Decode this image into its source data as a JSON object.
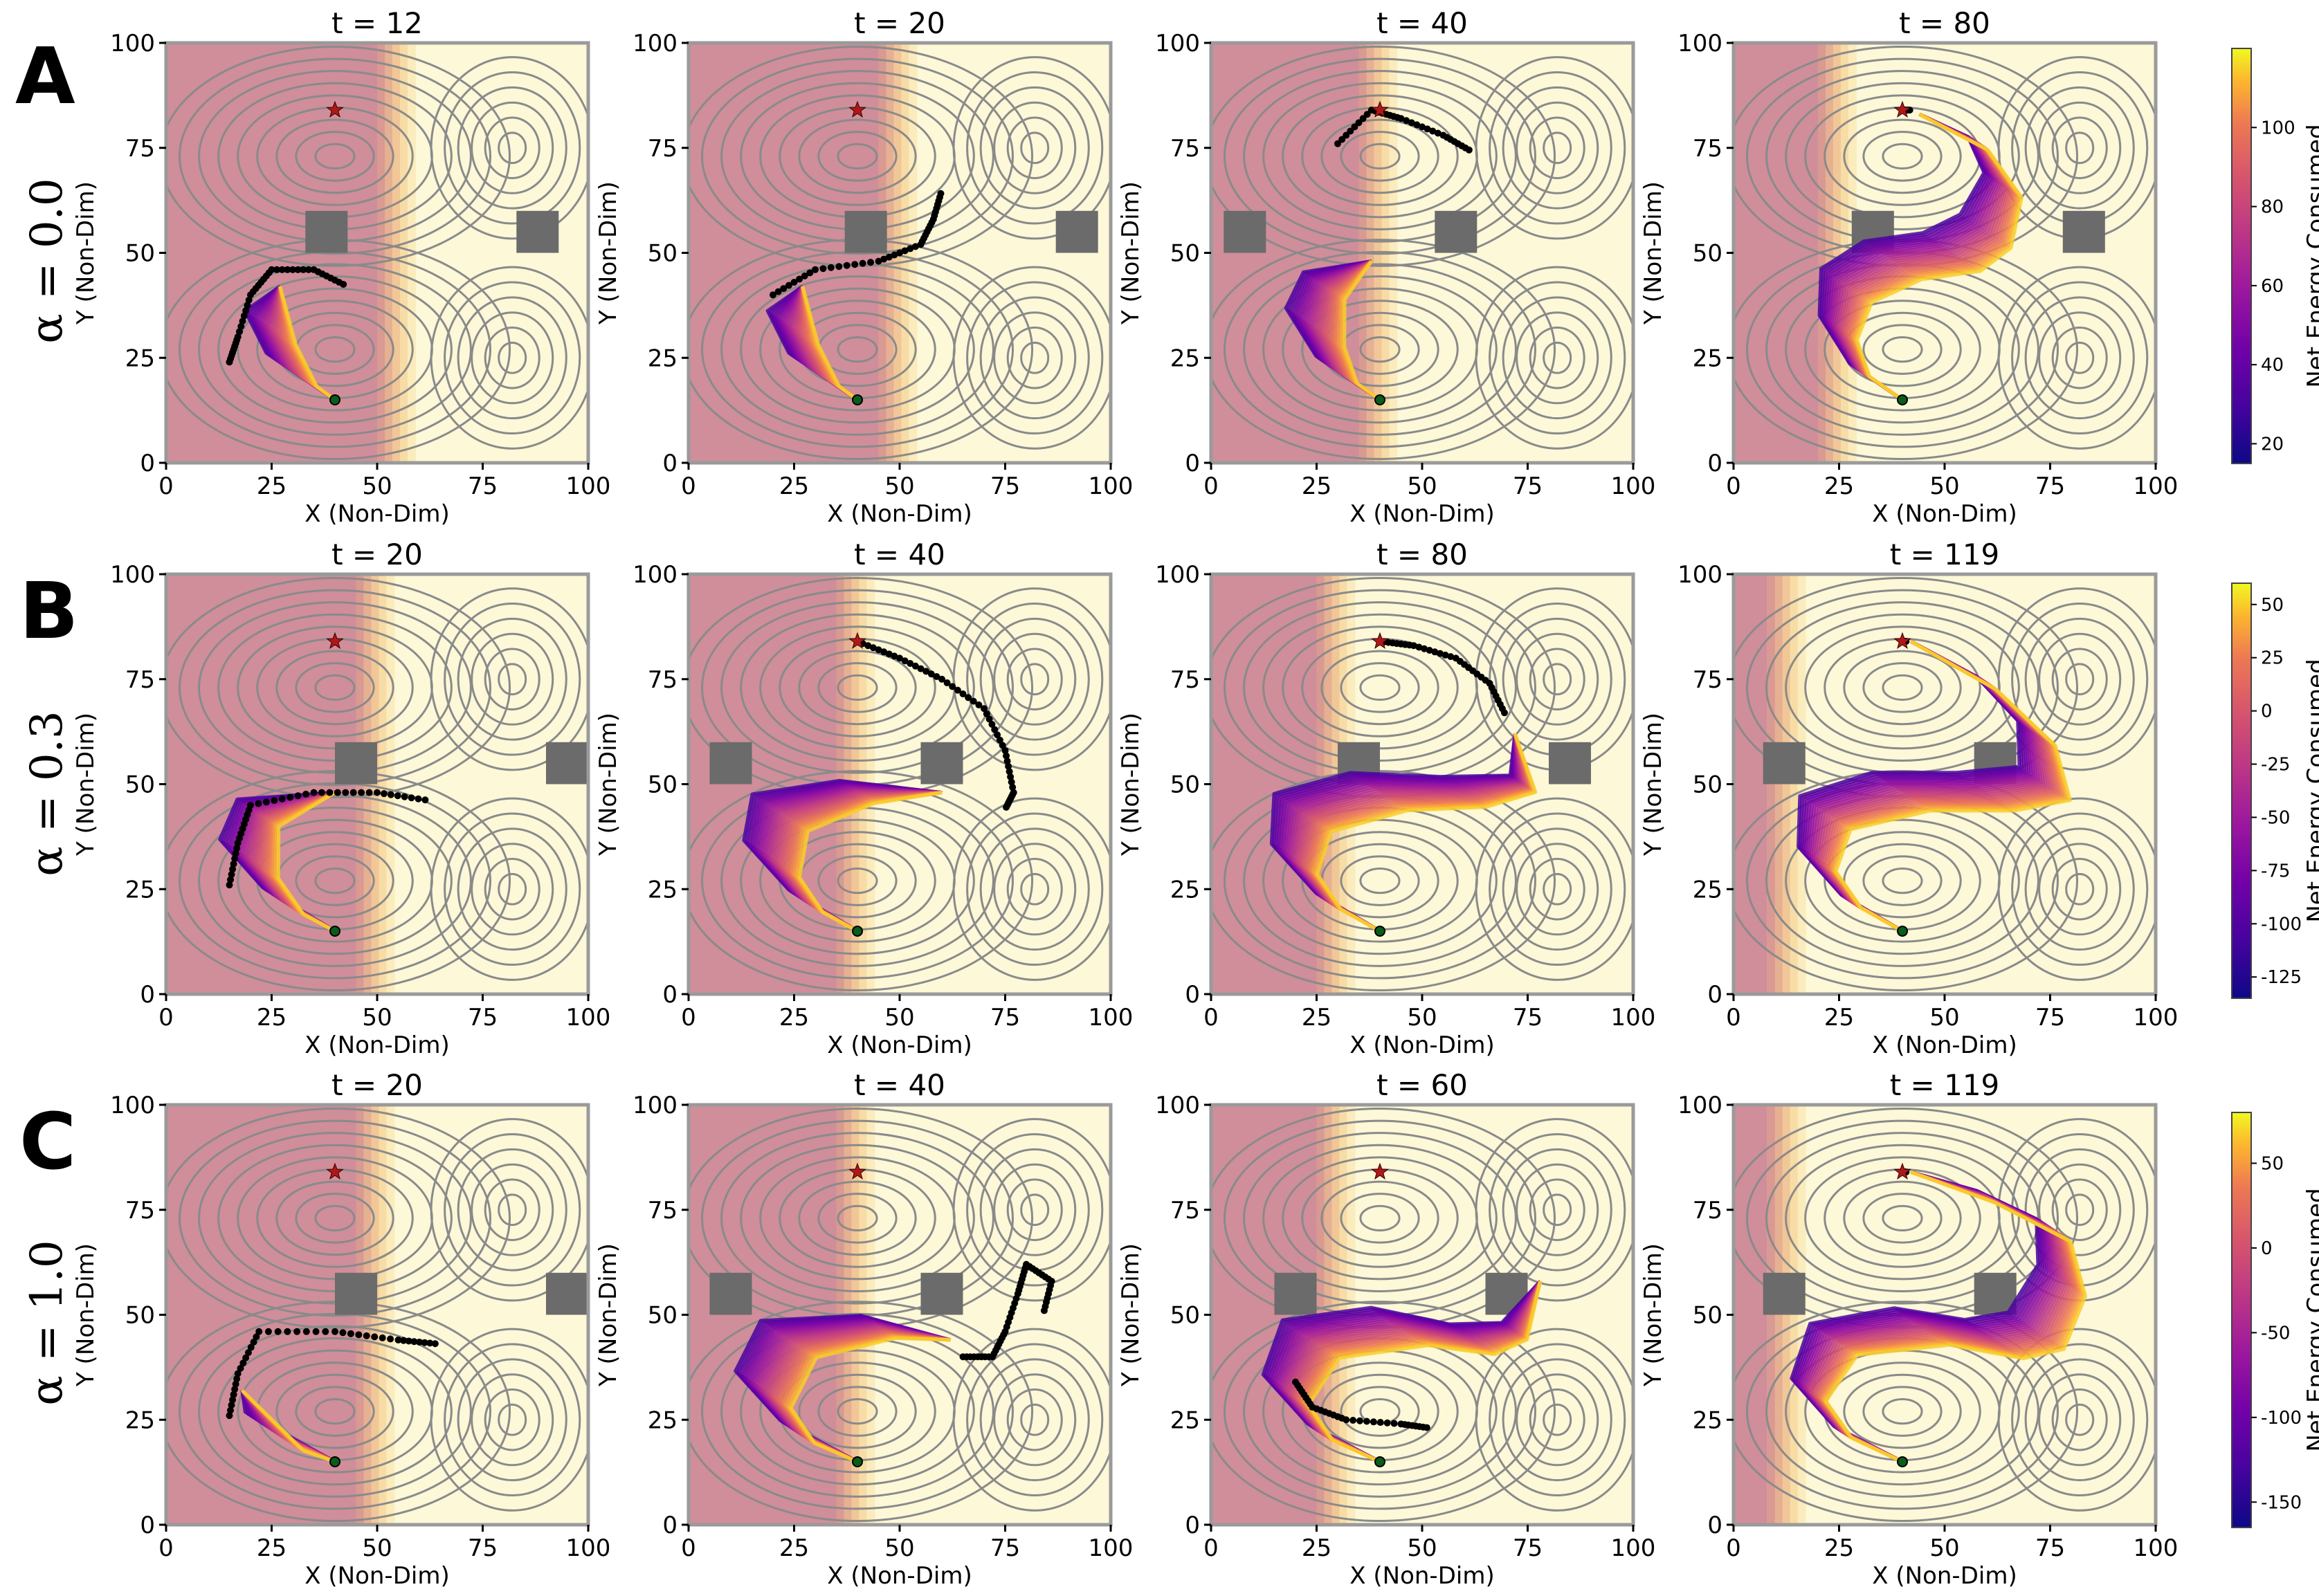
{
  "figure": {
    "axis_xlabel": "X (Non-Dim)",
    "axis_ylabel": "Y (Non-Dim)",
    "colorbar_label": "Net Energy Consumed",
    "tick_values": [
      0,
      25,
      50,
      75,
      100
    ]
  },
  "rows": [
    {
      "letter": "A",
      "alpha_label": "α = 0.0",
      "colorbar_ticks": [
        20,
        40,
        60,
        80,
        100
      ],
      "colorbar_range": [
        15,
        120
      ]
    },
    {
      "letter": "B",
      "alpha_label": "α = 0.3",
      "colorbar_ticks": [
        -125,
        -100,
        -75,
        -50,
        -25,
        0,
        25,
        50
      ],
      "colorbar_range": [
        -135,
        60
      ]
    },
    {
      "letter": "C",
      "alpha_label": "α = 1.0",
      "colorbar_ticks": [
        -150,
        -100,
        -50,
        0,
        50
      ],
      "colorbar_range": [
        -165,
        80
      ]
    }
  ],
  "chart_data": [
    {
      "type": "line",
      "row": "A",
      "title": "t = 12",
      "xlim": [
        0,
        100
      ],
      "ylim": [
        0,
        100
      ],
      "start": [
        40,
        15
      ],
      "goal": [
        40,
        84
      ],
      "obstacles": [
        [
          38,
          55
        ],
        [
          88,
          55
        ]
      ],
      "shade_edge": 50,
      "frontier": [
        [
          15,
          24
        ],
        [
          17,
          30
        ],
        [
          20,
          40
        ],
        [
          25,
          46
        ],
        [
          35,
          46
        ],
        [
          43,
          42
        ]
      ]
    },
    {
      "type": "line",
      "row": "A",
      "title": "t = 20",
      "xlim": [
        0,
        100
      ],
      "ylim": [
        0,
        100
      ],
      "start": [
        40,
        15
      ],
      "goal": [
        40,
        84
      ],
      "obstacles": [
        [
          42,
          55
        ],
        [
          92,
          55
        ]
      ],
      "shade_edge": 45,
      "frontier": [
        [
          20,
          40
        ],
        [
          30,
          46
        ],
        [
          45,
          48
        ],
        [
          55,
          52
        ],
        [
          58,
          58
        ],
        [
          60,
          65
        ]
      ]
    },
    {
      "type": "line",
      "row": "A",
      "title": "t = 40",
      "xlim": [
        0,
        100
      ],
      "ylim": [
        0,
        100
      ],
      "start": [
        40,
        15
      ],
      "goal": [
        40,
        84
      ],
      "obstacles": [
        [
          8,
          55
        ],
        [
          58,
          55
        ]
      ],
      "shade_edge": 35,
      "frontier": [
        [
          30,
          76
        ],
        [
          38,
          84
        ],
        [
          45,
          82
        ],
        [
          55,
          78
        ],
        [
          62,
          74
        ]
      ]
    },
    {
      "type": "line",
      "row": "A",
      "title": "t = 80",
      "xlim": [
        0,
        100
      ],
      "ylim": [
        0,
        100
      ],
      "start": [
        40,
        15
      ],
      "goal": [
        40,
        84
      ],
      "obstacles": [
        [
          33,
          55
        ],
        [
          83,
          55
        ]
      ],
      "shade_edge": 20,
      "frontier": [
        [
          40,
          84
        ],
        [
          42,
          84
        ]
      ]
    },
    {
      "type": "line",
      "row": "B",
      "title": "t = 20",
      "xlim": [
        0,
        100
      ],
      "ylim": [
        0,
        100
      ],
      "start": [
        40,
        15
      ],
      "goal": [
        40,
        84
      ],
      "obstacles": [
        [
          45,
          55
        ],
        [
          95,
          55
        ]
      ],
      "shade_edge": 45,
      "frontier": [
        [
          15,
          26
        ],
        [
          17,
          36
        ],
        [
          20,
          45
        ],
        [
          35,
          48
        ],
        [
          50,
          48
        ],
        [
          63,
          46
        ]
      ]
    },
    {
      "type": "line",
      "row": "B",
      "title": "t = 40",
      "xlim": [
        0,
        100
      ],
      "ylim": [
        0,
        100
      ],
      "start": [
        40,
        15
      ],
      "goal": [
        40,
        84
      ],
      "obstacles": [
        [
          10,
          55
        ],
        [
          60,
          55
        ]
      ],
      "shade_edge": 35,
      "frontier": [
        [
          40,
          84
        ],
        [
          50,
          80
        ],
        [
          60,
          75
        ],
        [
          70,
          68
        ],
        [
          75,
          58
        ],
        [
          77,
          48
        ],
        [
          75,
          44
        ]
      ]
    },
    {
      "type": "line",
      "row": "B",
      "title": "t = 80",
      "xlim": [
        0,
        100
      ],
      "ylim": [
        0,
        100
      ],
      "start": [
        40,
        15
      ],
      "goal": [
        40,
        84
      ],
      "obstacles": [
        [
          35,
          55
        ],
        [
          85,
          55
        ]
      ],
      "shade_edge": 25,
      "frontier": [
        [
          40,
          84
        ],
        [
          48,
          83
        ],
        [
          58,
          80
        ],
        [
          66,
          74
        ],
        [
          70,
          66
        ]
      ]
    },
    {
      "type": "line",
      "row": "B",
      "title": "t = 119",
      "xlim": [
        0,
        100
      ],
      "ylim": [
        0,
        100
      ],
      "start": [
        40,
        15
      ],
      "goal": [
        40,
        84
      ],
      "obstacles": [
        [
          12,
          55
        ],
        [
          62,
          55
        ]
      ],
      "shade_edge": 8,
      "frontier": [
        [
          40,
          84
        ],
        [
          41,
          84
        ]
      ]
    },
    {
      "type": "line",
      "row": "C",
      "title": "t = 20",
      "xlim": [
        0,
        100
      ],
      "ylim": [
        0,
        100
      ],
      "start": [
        40,
        15
      ],
      "goal": [
        40,
        84
      ],
      "obstacles": [
        [
          45,
          55
        ],
        [
          95,
          55
        ]
      ],
      "shade_edge": 45,
      "frontier": [
        [
          15,
          26
        ],
        [
          17,
          36
        ],
        [
          22,
          46
        ],
        [
          40,
          46
        ],
        [
          55,
          44
        ],
        [
          65,
          43
        ]
      ]
    },
    {
      "type": "line",
      "row": "C",
      "title": "t = 40",
      "xlim": [
        0,
        100
      ],
      "ylim": [
        0,
        100
      ],
      "start": [
        40,
        15
      ],
      "goal": [
        40,
        84
      ],
      "obstacles": [
        [
          10,
          55
        ],
        [
          60,
          55
        ]
      ],
      "shade_edge": 35,
      "frontier": [
        [
          65,
          40
        ],
        [
          72,
          40
        ],
        [
          75,
          46
        ],
        [
          78,
          55
        ],
        [
          80,
          62
        ],
        [
          86,
          58
        ],
        [
          84,
          50
        ]
      ]
    },
    {
      "type": "line",
      "row": "C",
      "title": "t = 60",
      "xlim": [
        0,
        100
      ],
      "ylim": [
        0,
        100
      ],
      "start": [
        40,
        15
      ],
      "goal": [
        40,
        84
      ],
      "obstacles": [
        [
          20,
          55
        ],
        [
          70,
          55
        ]
      ],
      "shade_edge": 25,
      "frontier": [
        [
          20,
          34
        ],
        [
          24,
          28
        ],
        [
          32,
          25
        ],
        [
          45,
          24
        ],
        [
          52,
          23
        ]
      ]
    },
    {
      "type": "line",
      "row": "C",
      "title": "t = 119",
      "xlim": [
        0,
        100
      ],
      "ylim": [
        0,
        100
      ],
      "start": [
        40,
        15
      ],
      "goal": [
        40,
        84
      ],
      "obstacles": [
        [
          12,
          55
        ],
        [
          62,
          55
        ]
      ],
      "shade_edge": 8,
      "frontier": [
        [
          40,
          84
        ],
        [
          41,
          84
        ]
      ]
    }
  ]
}
